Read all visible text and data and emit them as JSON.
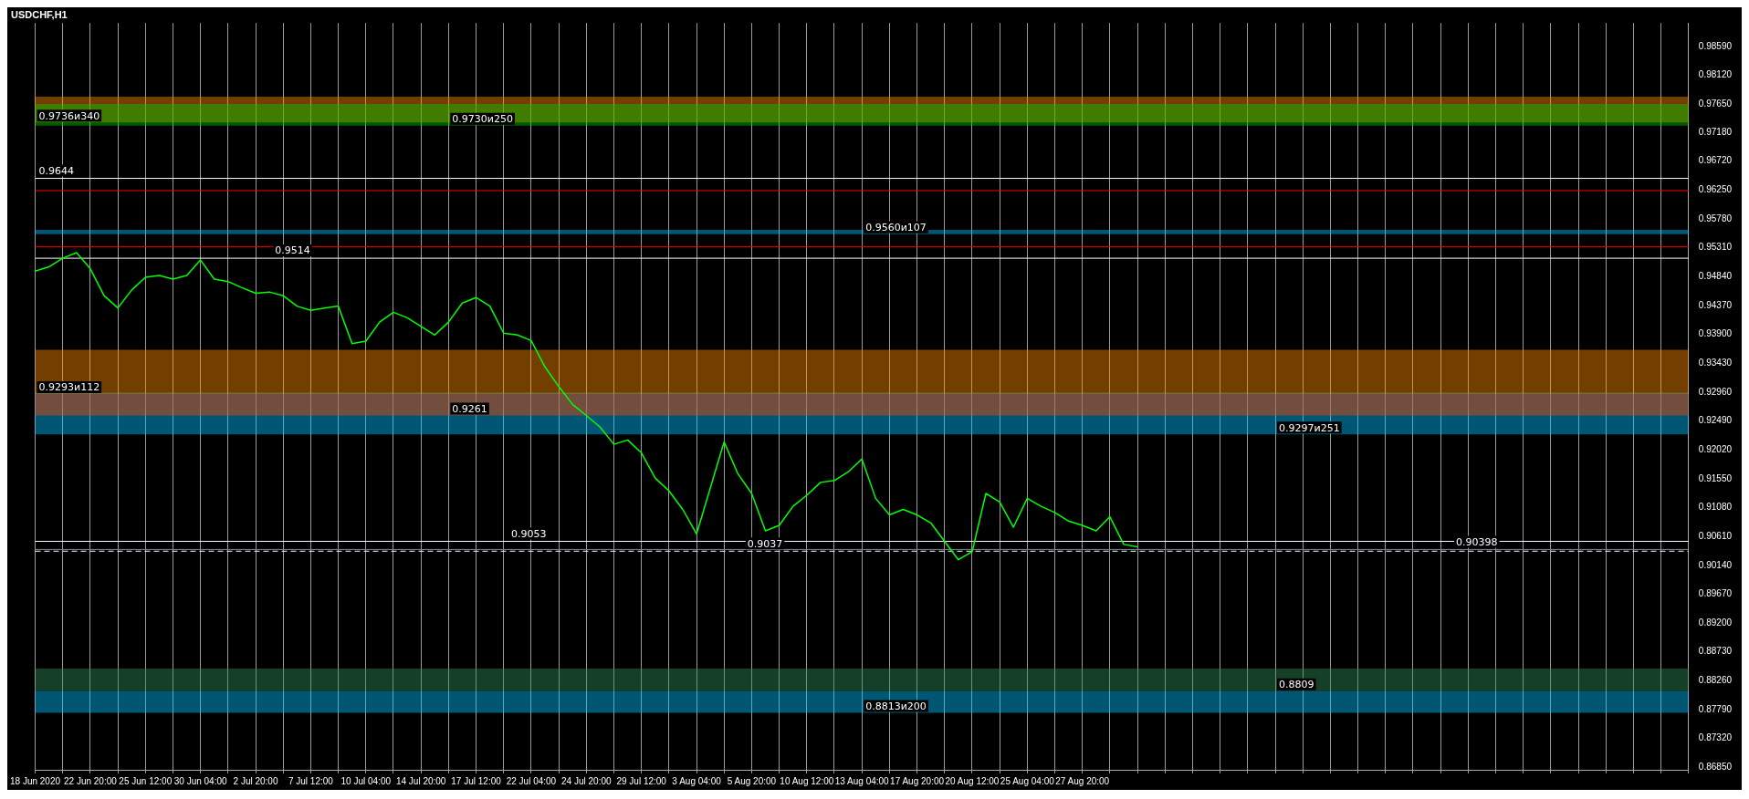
{
  "chart_data": {
    "type": "line",
    "title": "USDCHF,H1",
    "categories": [
      "18 Jun 2020",
      null,
      null,
      null,
      "22 Jun 20:00",
      null,
      null,
      null,
      "25 Jun 12:00",
      null,
      null,
      null,
      "30 Jun 04:00",
      null,
      null,
      null,
      "2 Jul 20:00",
      null,
      null,
      null,
      "7 Jul 12:00",
      null,
      null,
      null,
      "10 Jul 04:00",
      null,
      null,
      null,
      "14 Jul 20:00",
      null,
      null,
      null,
      "17 Jul 12:00",
      null,
      null,
      null,
      "22 Jul 04:00",
      null,
      null,
      null,
      "24 Jul 20:00",
      null,
      null,
      null,
      "29 Jul 12:00",
      null,
      null,
      null,
      "3 Aug 04:00",
      null,
      null,
      null,
      "5 Aug 20:00",
      null,
      null,
      null,
      "10 Aug 12:00",
      null,
      null,
      null,
      "13 Aug 04:00",
      null,
      null,
      null,
      "17 Aug 20:00",
      null,
      null,
      null,
      "20 Aug 12:00",
      null,
      null,
      null,
      "25 Aug 04:00",
      null,
      null,
      null,
      "27 Aug 20:00",
      null,
      null,
      null,
      null,
      null,
      null,
      null,
      null,
      null,
      null,
      null,
      null,
      null,
      null,
      null,
      null,
      null,
      null,
      null,
      null,
      null,
      null,
      null,
      null,
      null,
      null,
      null,
      null,
      null,
      null,
      null,
      null,
      null,
      null,
      null,
      null,
      null,
      null,
      null,
      null,
      null,
      null,
      null,
      null
    ],
    "series": [
      {
        "color": "#00ff00",
        "values": [
          0.9493,
          0.95,
          0.9514,
          0.9523,
          0.9497,
          0.9453,
          0.9433,
          0.9462,
          0.9483,
          0.9486,
          0.948,
          0.9486,
          0.9511,
          0.948,
          0.9476,
          0.9466,
          0.9457,
          0.9459,
          0.9453,
          0.9436,
          0.9429,
          0.9433,
          0.9436,
          0.9375,
          0.9379,
          0.941,
          0.9426,
          0.9417,
          0.9403,
          0.9389,
          0.941,
          0.9441,
          0.945,
          0.9436,
          0.9392,
          0.9389,
          0.938,
          0.9337,
          0.9305,
          0.9276,
          0.9258,
          0.9239,
          0.9211,
          0.9218,
          0.9197,
          0.9156,
          0.9135,
          0.9105,
          0.9065,
          0.914,
          0.9215,
          0.9163,
          0.9131,
          0.907,
          0.9079,
          0.911,
          0.9128,
          0.9149,
          0.9152,
          0.9166,
          0.9187,
          0.9123,
          0.9096,
          0.9105,
          0.9096,
          0.9083,
          0.9053,
          0.9023,
          0.9036,
          0.9131,
          0.9117,
          0.9076,
          0.9123,
          0.911,
          0.91,
          0.9086,
          0.9079,
          0.907,
          0.9093,
          0.9048,
          0.9044,
          null,
          null,
          null,
          null,
          null,
          null,
          null,
          null,
          null,
          null,
          null,
          null,
          null,
          null,
          null,
          null,
          null,
          null,
          null,
          null,
          null,
          null,
          null,
          null,
          null,
          null,
          null,
          null,
          null,
          null,
          null,
          null,
          null,
          null,
          null,
          null,
          null,
          null,
          null,
          null
        ]
      }
    ],
    "ylim": [
      0.8681,
      0.9897
    ],
    "yticks": [
      {
        "value": 0.8685,
        "label": "0.86850"
      },
      {
        "value": 0.8732,
        "label": "0.87320"
      },
      {
        "value": 0.8779,
        "label": "0.87790"
      },
      {
        "value": 0.8826,
        "label": "0.88260"
      },
      {
        "value": 0.8873,
        "label": "0.88730"
      },
      {
        "value": 0.892,
        "label": "0.89200"
      },
      {
        "value": 0.8967,
        "label": "0.89670"
      },
      {
        "value": 0.9014,
        "label": "0.90140"
      },
      {
        "value": 0.9061,
        "label": "0.90610"
      },
      {
        "value": 0.9108,
        "label": "0.91080"
      },
      {
        "value": 0.9155,
        "label": "0.91550"
      },
      {
        "value": 0.9202,
        "label": "0.92020"
      },
      {
        "value": 0.9249,
        "label": "0.92490"
      },
      {
        "value": 0.9296,
        "label": "0.92960"
      },
      {
        "value": 0.9343,
        "label": "0.93430"
      },
      {
        "value": 0.939,
        "label": "0.93900"
      },
      {
        "value": 0.9437,
        "label": "0.94370"
      },
      {
        "value": 0.9484,
        "label": "0.94840"
      },
      {
        "value": 0.9531,
        "label": "0.95310"
      },
      {
        "value": 0.9578,
        "label": "0.95780"
      },
      {
        "value": 0.9625,
        "label": "0.96250"
      },
      {
        "value": 0.9672,
        "label": "0.96720"
      },
      {
        "value": 0.9718,
        "label": "0.97180"
      },
      {
        "value": 0.9765,
        "label": "0.97650"
      },
      {
        "value": 0.9812,
        "label": "0.98120"
      },
      {
        "value": 0.9859,
        "label": "0.98590"
      }
    ],
    "grid": "x",
    "line_style": "solid",
    "marker": "none",
    "bands": [
      {
        "axis": "y",
        "from": 0.9735,
        "to": 0.9777,
        "label": "0.9736и340",
        "color": "#ff8c00"
      },
      {
        "axis": "y",
        "from": 0.973,
        "to": 0.9765,
        "label": "0.9730и250",
        "color": "#00c800"
      },
      {
        "axis": "y",
        "from": 0.9553,
        "to": 0.956,
        "label": "0.9560и107",
        "color": "#00bfff"
      },
      {
        "axis": "y",
        "from": 0.9227,
        "to": 0.9295,
        "label": "0.9297и251",
        "color": "#00bfff"
      },
      {
        "axis": "y",
        "from": 0.9293,
        "to": 0.9365,
        "label": "0.9293и112",
        "color": "#ff8c00"
      },
      {
        "axis": "y",
        "from": 0.9258,
        "to": 0.9293,
        "label": "0.9261",
        "color": "#ff4500"
      },
      {
        "axis": "y",
        "from": 0.8774,
        "to": 0.8809,
        "label": "0.8813и200",
        "color": "#00bfff"
      },
      {
        "axis": "y",
        "from": 0.8809,
        "to": 0.8846,
        "label": "0.8809",
        "color": "#2e8b57"
      }
    ],
    "ref_lines": [
      {
        "axis": "y",
        "value": 0.9644,
        "label": "0.9644",
        "color": "#ffffff"
      },
      {
        "axis": "y",
        "value": 0.9514,
        "label": "0.9514",
        "color": "#ffffff"
      },
      {
        "axis": "y",
        "value": 0.9053,
        "label": "0.9053",
        "color": "#ffffff"
      },
      {
        "axis": "y",
        "value": 0.9037,
        "label": "0.9037",
        "color": "#ffffff",
        "line_style": "dashed"
      },
      {
        "axis": "y",
        "value": 0.9624,
        "color": "#ff0000"
      },
      {
        "axis": "y",
        "value": 0.9533,
        "color": "#ff0000"
      },
      {
        "axis": "y",
        "value": 0.90398,
        "label": "0.90398",
        "color": "#778899"
      }
    ],
    "legend": false
  }
}
